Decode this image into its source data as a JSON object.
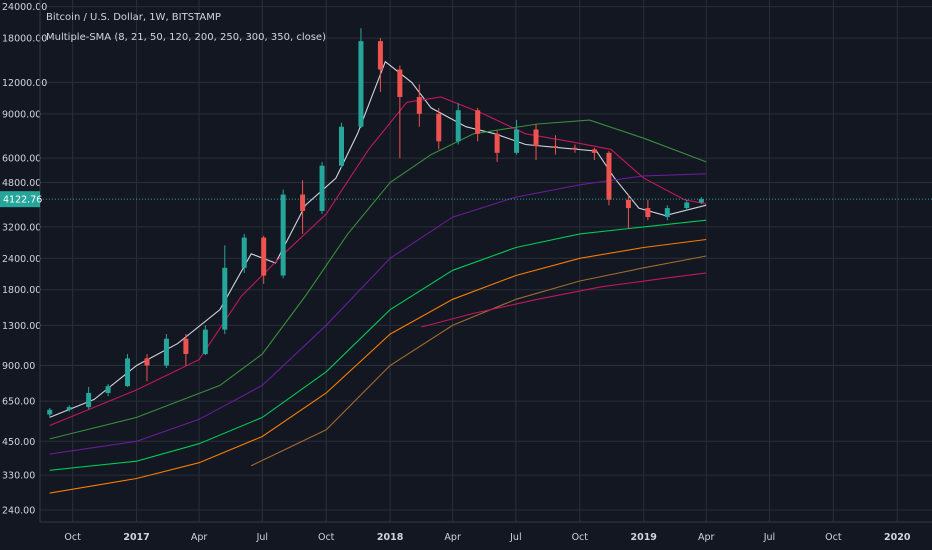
{
  "chart_data": {
    "type": "candlestick",
    "title": "Bitcoin / U.S. Dollar, 1W, BITSTAMP",
    "indicator_label": "Multiple-SMA (8, 21, 50, 120, 200, 250, 300, 350, close)",
    "scale": "log",
    "grid": true,
    "last_price": "4122.76",
    "last_price_value": 4122.76,
    "y_ticks": [
      {
        "label": "24000.00",
        "value": 24000
      },
      {
        "label": "18000.00",
        "value": 18000
      },
      {
        "label": "12000.00",
        "value": 12000
      },
      {
        "label": "9000.00",
        "value": 9000
      },
      {
        "label": "6000.00",
        "value": 6000
      },
      {
        "label": "4800.00",
        "value": 4800
      },
      {
        "label": "3200.00",
        "value": 3200
      },
      {
        "label": "2400.00",
        "value": 2400
      },
      {
        "label": "1800.00",
        "value": 1800
      },
      {
        "label": "1300.00",
        "value": 1300
      },
      {
        "label": "900.00",
        "value": 900
      },
      {
        "label": "650.00",
        "value": 650
      },
      {
        "label": "450.00",
        "value": 450
      },
      {
        "label": "330.00",
        "value": 330
      },
      {
        "label": "240.00",
        "value": 240
      }
    ],
    "x_ticks": [
      {
        "label": "Oct",
        "date": "2016-10-01",
        "bold": false
      },
      {
        "label": "2017",
        "date": "2017-01-01",
        "bold": true
      },
      {
        "label": "Apr",
        "date": "2017-04-01",
        "bold": false
      },
      {
        "label": "Jul",
        "date": "2017-07-01",
        "bold": false
      },
      {
        "label": "Oct",
        "date": "2017-10-01",
        "bold": false
      },
      {
        "label": "2018",
        "date": "2018-01-01",
        "bold": true
      },
      {
        "label": "Apr",
        "date": "2018-04-01",
        "bold": false
      },
      {
        "label": "Jul",
        "date": "2018-07-01",
        "bold": false
      },
      {
        "label": "Oct",
        "date": "2018-10-01",
        "bold": false
      },
      {
        "label": "2019",
        "date": "2019-01-01",
        "bold": true
      },
      {
        "label": "Apr",
        "date": "2019-04-01",
        "bold": false
      },
      {
        "label": "Jul",
        "date": "2019-07-01",
        "bold": false
      },
      {
        "label": "Oct",
        "date": "2019-10-01",
        "bold": false
      },
      {
        "label": "2020",
        "date": "2020-01-01",
        "bold": true
      }
    ],
    "candles": [
      {
        "date": "2016-08-29",
        "open": 575,
        "high": 610,
        "low": 560,
        "close": 600
      },
      {
        "date": "2016-09-26",
        "open": 600,
        "high": 625,
        "low": 590,
        "close": 615
      },
      {
        "date": "2016-10-24",
        "open": 615,
        "high": 740,
        "low": 605,
        "close": 700
      },
      {
        "date": "2016-11-21",
        "open": 700,
        "high": 760,
        "low": 680,
        "close": 745
      },
      {
        "date": "2016-12-19",
        "open": 745,
        "high": 1000,
        "low": 740,
        "close": 960
      },
      {
        "date": "2017-01-16",
        "open": 960,
        "high": 1000,
        "low": 780,
        "close": 900
      },
      {
        "date": "2017-02-13",
        "open": 900,
        "high": 1200,
        "low": 880,
        "close": 1150
      },
      {
        "date": "2017-03-13",
        "open": 1150,
        "high": 1200,
        "low": 900,
        "close": 1000
      },
      {
        "date": "2017-04-10",
        "open": 1000,
        "high": 1300,
        "low": 990,
        "close": 1250
      },
      {
        "date": "2017-05-08",
        "open": 1250,
        "high": 2700,
        "low": 1200,
        "close": 2200
      },
      {
        "date": "2017-06-05",
        "open": 2200,
        "high": 3000,
        "low": 2100,
        "close": 2900
      },
      {
        "date": "2017-07-03",
        "open": 2900,
        "high": 2950,
        "low": 1900,
        "close": 2050
      },
      {
        "date": "2017-07-31",
        "open": 2050,
        "high": 4500,
        "low": 2000,
        "close": 4300
      },
      {
        "date": "2017-08-28",
        "open": 4300,
        "high": 4900,
        "low": 3000,
        "close": 3700
      },
      {
        "date": "2017-09-25",
        "open": 3700,
        "high": 5800,
        "low": 3600,
        "close": 5600
      },
      {
        "date": "2017-10-23",
        "open": 5600,
        "high": 8300,
        "low": 5500,
        "close": 8000
      },
      {
        "date": "2017-11-20",
        "open": 8000,
        "high": 19700,
        "low": 7900,
        "close": 17500
      },
      {
        "date": "2017-12-18",
        "open": 17500,
        "high": 18000,
        "low": 11000,
        "close": 13500
      },
      {
        "date": "2018-01-15",
        "open": 13500,
        "high": 14000,
        "low": 6000,
        "close": 10500
      },
      {
        "date": "2018-02-12",
        "open": 10500,
        "high": 11800,
        "low": 8000,
        "close": 9000
      },
      {
        "date": "2018-03-12",
        "open": 9000,
        "high": 9500,
        "low": 6500,
        "close": 7000
      },
      {
        "date": "2018-04-09",
        "open": 7000,
        "high": 9900,
        "low": 6800,
        "close": 9300
      },
      {
        "date": "2018-05-07",
        "open": 9300,
        "high": 9500,
        "low": 7000,
        "close": 7500
      },
      {
        "date": "2018-06-04",
        "open": 7500,
        "high": 7700,
        "low": 5800,
        "close": 6300
      },
      {
        "date": "2018-07-02",
        "open": 6300,
        "high": 8500,
        "low": 6200,
        "close": 7800
      },
      {
        "date": "2018-07-30",
        "open": 7800,
        "high": 8200,
        "low": 5900,
        "close": 6700
      },
      {
        "date": "2018-08-27",
        "open": 6700,
        "high": 7400,
        "low": 6200,
        "close": 6600
      },
      {
        "date": "2018-09-24",
        "open": 6600,
        "high": 6800,
        "low": 6300,
        "close": 6500
      },
      {
        "date": "2018-10-22",
        "open": 6500,
        "high": 6600,
        "low": 5900,
        "close": 6300
      },
      {
        "date": "2018-11-12",
        "open": 6300,
        "high": 6400,
        "low": 3900,
        "close": 4100
      },
      {
        "date": "2018-12-10",
        "open": 4100,
        "high": 4300,
        "low": 3150,
        "close": 3800
      },
      {
        "date": "2019-01-07",
        "open": 3800,
        "high": 4100,
        "low": 3400,
        "close": 3500
      },
      {
        "date": "2019-02-04",
        "open": 3500,
        "high": 3900,
        "low": 3400,
        "close": 3800
      },
      {
        "date": "2019-03-04",
        "open": 3800,
        "high": 4100,
        "low": 3700,
        "close": 4000
      },
      {
        "date": "2019-03-25",
        "open": 4000,
        "high": 4200,
        "low": 3950,
        "close": 4122.76
      }
    ],
    "series": [
      {
        "color": "#d1d4dc",
        "points": [
          [
            "2016-08-29",
            560
          ],
          [
            "2016-11-01",
            660
          ],
          [
            "2017-01-01",
            900
          ],
          [
            "2017-03-01",
            1100
          ],
          [
            "2017-05-01",
            1500
          ],
          [
            "2017-06-15",
            2500
          ],
          [
            "2017-07-20",
            2300
          ],
          [
            "2017-09-01",
            3900
          ],
          [
            "2017-10-15",
            5000
          ],
          [
            "2017-11-15",
            7500
          ],
          [
            "2017-12-25",
            14500
          ],
          [
            "2018-02-01",
            12000
          ],
          [
            "2018-03-01",
            9500
          ],
          [
            "2018-04-20",
            8000
          ],
          [
            "2018-06-01",
            7500
          ],
          [
            "2018-07-15",
            6800
          ],
          [
            "2018-09-01",
            6600
          ],
          [
            "2018-10-25",
            6400
          ],
          [
            "2018-11-20",
            5000
          ],
          [
            "2018-12-25",
            3800
          ],
          [
            "2019-02-01",
            3550
          ],
          [
            "2019-04-01",
            3900
          ]
        ]
      },
      {
        "color": "#c2185b",
        "points": [
          [
            "2016-08-29",
            520
          ],
          [
            "2017-01-01",
            720
          ],
          [
            "2017-04-01",
            950
          ],
          [
            "2017-06-01",
            1700
          ],
          [
            "2017-08-01",
            2500
          ],
          [
            "2017-10-01",
            3600
          ],
          [
            "2017-12-01",
            6500
          ],
          [
            "2018-01-25",
            10000
          ],
          [
            "2018-03-15",
            10500
          ],
          [
            "2018-05-15",
            9000
          ],
          [
            "2018-07-15",
            7500
          ],
          [
            "2018-09-15",
            7000
          ],
          [
            "2018-11-15",
            6500
          ],
          [
            "2019-01-01",
            5000
          ],
          [
            "2019-03-01",
            4100
          ],
          [
            "2019-04-01",
            3950
          ]
        ]
      },
      {
        "color": "#388e3c",
        "points": [
          [
            "2016-08-29",
            460
          ],
          [
            "2017-01-01",
            560
          ],
          [
            "2017-05-01",
            750
          ],
          [
            "2017-07-01",
            1000
          ],
          [
            "2017-09-01",
            1700
          ],
          [
            "2017-11-01",
            3000
          ],
          [
            "2018-01-01",
            4800
          ],
          [
            "2018-03-01",
            6200
          ],
          [
            "2018-05-01",
            7500
          ],
          [
            "2018-08-01",
            8200
          ],
          [
            "2018-10-15",
            8500
          ],
          [
            "2019-01-01",
            7200
          ],
          [
            "2019-04-01",
            5800
          ]
        ]
      },
      {
        "color": "#6a1b9a",
        "points": [
          [
            "2016-08-29",
            400
          ],
          [
            "2017-01-01",
            450
          ],
          [
            "2017-04-01",
            550
          ],
          [
            "2017-07-01",
            750
          ],
          [
            "2017-10-01",
            1300
          ],
          [
            "2018-01-01",
            2400
          ],
          [
            "2018-04-01",
            3500
          ],
          [
            "2018-07-01",
            4200
          ],
          [
            "2018-10-01",
            4700
          ],
          [
            "2019-01-01",
            5100
          ],
          [
            "2019-04-01",
            5200
          ]
        ]
      },
      {
        "color": "#00c853",
        "points": [
          [
            "2016-08-29",
            345
          ],
          [
            "2017-01-01",
            375
          ],
          [
            "2017-04-01",
            440
          ],
          [
            "2017-07-01",
            560
          ],
          [
            "2017-10-01",
            850
          ],
          [
            "2018-01-01",
            1500
          ],
          [
            "2018-04-01",
            2150
          ],
          [
            "2018-07-01",
            2650
          ],
          [
            "2018-10-01",
            3000
          ],
          [
            "2019-01-01",
            3200
          ],
          [
            "2019-04-01",
            3400
          ]
        ]
      },
      {
        "color": "#f57c00",
        "points": [
          [
            "2016-08-29",
            280
          ],
          [
            "2017-01-01",
            320
          ],
          [
            "2017-04-01",
            370
          ],
          [
            "2017-07-01",
            470
          ],
          [
            "2017-10-01",
            700
          ],
          [
            "2018-01-01",
            1200
          ],
          [
            "2018-04-01",
            1650
          ],
          [
            "2018-07-01",
            2050
          ],
          [
            "2018-10-01",
            2400
          ],
          [
            "2019-01-01",
            2650
          ],
          [
            "2019-04-01",
            2850
          ]
        ]
      },
      {
        "color": "#9e6b2e",
        "points": [
          [
            "2017-06-15",
            360
          ],
          [
            "2017-10-01",
            500
          ],
          [
            "2018-01-01",
            900
          ],
          [
            "2018-04-01",
            1300
          ],
          [
            "2018-07-01",
            1650
          ],
          [
            "2018-10-01",
            1950
          ],
          [
            "2019-01-01",
            2200
          ],
          [
            "2019-04-01",
            2450
          ]
        ]
      },
      {
        "color": "#c2185b",
        "points": [
          [
            "2018-02-15",
            1280
          ],
          [
            "2018-05-01",
            1450
          ],
          [
            "2018-08-01",
            1650
          ],
          [
            "2018-11-01",
            1850
          ],
          [
            "2019-02-01",
            2000
          ],
          [
            "2019-04-01",
            2100
          ]
        ]
      }
    ]
  }
}
